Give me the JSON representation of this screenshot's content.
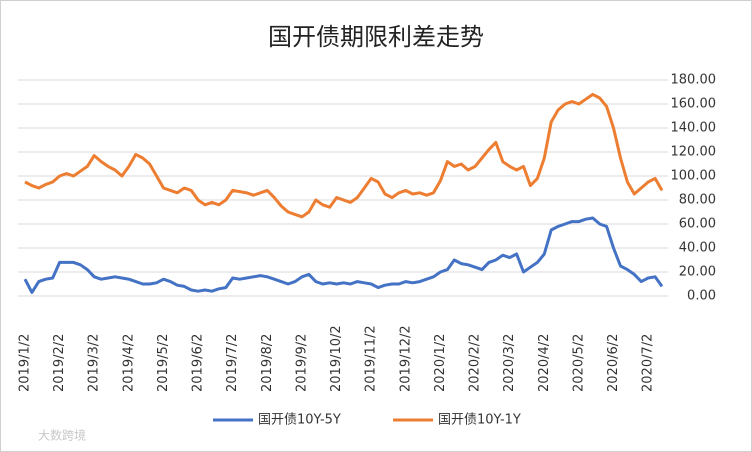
{
  "chart_data": {
    "type": "line",
    "title": "国开债期限利差走势",
    "watermark": "大数跨境",
    "categories": [
      "2019/1/2",
      null,
      null,
      null,
      null,
      "2019/2/2",
      null,
      null,
      null,
      null,
      "2019/3/2",
      null,
      null,
      null,
      null,
      "2019/4/2",
      null,
      null,
      null,
      null,
      "2019/5/2",
      null,
      null,
      null,
      null,
      "2019/6/2",
      null,
      null,
      null,
      null,
      "2019/7/2",
      null,
      null,
      null,
      null,
      "2019/8/2",
      null,
      null,
      null,
      null,
      "2019/9/2",
      null,
      null,
      null,
      null,
      "2019/10/2",
      null,
      null,
      null,
      null,
      "2019/11/2",
      null,
      null,
      null,
      null,
      "2019/12/2",
      null,
      null,
      null,
      null,
      "2020/1/2",
      null,
      null,
      null,
      null,
      "2020/2/2",
      null,
      null,
      null,
      null,
      "2020/3/2",
      null,
      null,
      null,
      null,
      "2020/4/2",
      null,
      null,
      null,
      null,
      "2020/5/2",
      null,
      null,
      null,
      null,
      "2020/6/2",
      null,
      null,
      null,
      null,
      "2020/7/2",
      null,
      null
    ],
    "series": [
      {
        "name": "国开债10Y-5Y",
        "color": "#4472c4",
        "values": [
          14,
          3,
          12,
          14,
          15,
          28,
          28,
          28,
          26,
          22,
          16,
          14,
          15,
          16,
          15,
          14,
          12,
          10,
          10,
          11,
          14,
          12,
          9,
          8,
          5,
          4,
          5,
          4,
          6,
          7,
          15,
          14,
          15,
          16,
          17,
          16,
          14,
          12,
          10,
          12,
          16,
          18,
          12,
          10,
          11,
          10,
          11,
          10,
          12,
          11,
          10,
          7,
          9,
          10,
          10,
          12,
          11,
          12,
          14,
          16,
          20,
          22,
          30,
          27,
          26,
          24,
          22,
          28,
          30,
          34,
          32,
          35,
          20,
          24,
          28,
          35,
          55,
          58,
          60,
          62,
          62,
          64,
          65,
          60,
          58,
          40,
          25,
          22,
          18,
          12,
          15,
          16,
          8
        ]
      },
      {
        "name": "国开债10Y-1Y",
        "color": "#ed7d31",
        "values": [
          95,
          92,
          90,
          93,
          95,
          100,
          102,
          100,
          104,
          108,
          117,
          112,
          108,
          105,
          100,
          108,
          118,
          115,
          110,
          100,
          90,
          88,
          86,
          90,
          88,
          80,
          76,
          78,
          76,
          80,
          88,
          87,
          86,
          84,
          86,
          88,
          82,
          75,
          70,
          68,
          66,
          70,
          80,
          76,
          74,
          82,
          80,
          78,
          82,
          90,
          98,
          95,
          85,
          82,
          86,
          88,
          85,
          86,
          84,
          86,
          96,
          112,
          108,
          110,
          105,
          108,
          115,
          122,
          128,
          112,
          108,
          105,
          108,
          92,
          98,
          115,
          145,
          155,
          160,
          162,
          160,
          164,
          168,
          165,
          158,
          140,
          115,
          95,
          85,
          90,
          95,
          98,
          88
        ]
      }
    ],
    "ylim": [
      0,
      180
    ],
    "yticks": [
      {
        "value": 0,
        "label": "0.00"
      },
      {
        "value": 20,
        "label": "20.00"
      },
      {
        "value": 40,
        "label": "40.00"
      },
      {
        "value": 60,
        "label": "60.00"
      },
      {
        "value": 80,
        "label": "80.00"
      },
      {
        "value": 100,
        "label": "100.00"
      },
      {
        "value": 120,
        "label": "120.00"
      },
      {
        "value": 140,
        "label": "140.00"
      },
      {
        "value": 160,
        "label": "160.00"
      },
      {
        "value": 180,
        "label": "180.00"
      }
    ],
    "grid": true,
    "legend": "bottom"
  }
}
